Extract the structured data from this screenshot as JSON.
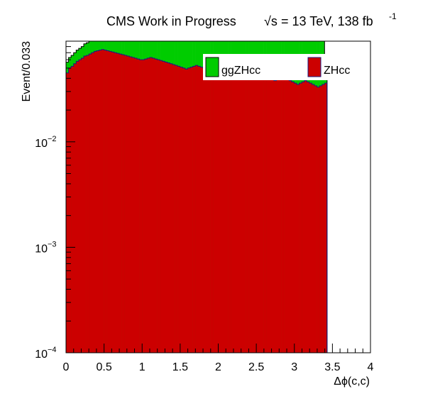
{
  "chart_data": {
    "type": "bar",
    "stacked": true,
    "title_main": "CMS Work in Progress",
    "title_energy": "= 13 TeV, 138 fb",
    "title_sqrt": "√s",
    "title_exp": "-1",
    "xlabel": "Δϕ(c,c)",
    "ylabel": "Event/0.033",
    "xlim": [
      0,
      4
    ],
    "ylim": [
      0.0001,
      0.09
    ],
    "yscale": "log",
    "bin_width": 0.0333,
    "x_ticks": [
      "0",
      "0.5",
      "1",
      "1.5",
      "2",
      "2.5",
      "3",
      "3.5",
      "4"
    ],
    "x_tick_values": [
      0,
      0.5,
      1,
      1.5,
      2,
      2.5,
      3,
      3.5,
      4
    ],
    "y_ticks": [
      {
        "value": 0.01,
        "base": "10",
        "exp": "−2"
      },
      {
        "value": 0.001,
        "base": "10",
        "exp": "−3"
      },
      {
        "value": 0.0001,
        "base": "10",
        "exp": "−4"
      }
    ],
    "legend": [
      {
        "name": "ggZHcc",
        "color": "#00cc00"
      },
      {
        "name": "ZHcc",
        "color": "#cc0000"
      }
    ],
    "legend_position": "top-right",
    "series": [
      {
        "name": "ZHcc",
        "color": "#cc0000",
        "values": [
          0.045,
          0.05,
          0.052,
          0.055,
          0.058,
          0.06,
          0.062,
          0.065,
          0.066,
          0.068,
          0.07,
          0.072,
          0.073,
          0.074,
          0.075,
          0.074,
          0.073,
          0.072,
          0.071,
          0.07,
          0.069,
          0.068,
          0.067,
          0.066,
          0.065,
          0.064,
          0.063,
          0.062,
          0.061,
          0.06,
          0.06,
          0.061,
          0.062,
          0.063,
          0.062,
          0.061,
          0.06,
          0.059,
          0.058,
          0.057,
          0.056,
          0.055,
          0.054,
          0.053,
          0.052,
          0.051,
          0.05,
          0.049,
          0.05,
          0.051,
          0.052,
          0.053,
          0.052,
          0.051,
          0.05,
          0.049,
          0.048,
          0.047,
          0.046,
          0.045,
          0.044,
          0.043,
          0.042,
          0.043,
          0.044,
          0.045,
          0.046,
          0.045,
          0.044,
          0.043,
          0.042,
          0.041,
          0.04,
          0.041,
          0.042,
          0.043,
          0.044,
          0.043,
          0.042,
          0.041,
          0.04,
          0.039,
          0.038,
          0.039,
          0.04,
          0.041,
          0.04,
          0.039,
          0.038,
          0.037,
          0.036,
          0.035,
          0.036,
          0.037,
          0.038,
          0.037,
          0.036,
          0.035,
          0.034,
          0.033,
          0.034,
          0.035,
          0.036
        ]
      },
      {
        "name": "ggZHcc",
        "color": "#00cc00",
        "values": [
          0.012,
          0.013,
          0.014,
          0.015,
          0.016,
          0.017,
          0.018,
          0.02,
          0.021,
          0.022,
          0.023,
          0.024,
          0.025,
          0.026,
          0.027,
          0.027,
          0.028,
          0.028,
          0.029,
          0.03,
          0.031,
          0.031,
          0.032,
          0.033,
          0.033,
          0.034,
          0.035,
          0.036,
          0.036,
          0.037,
          0.038,
          0.038,
          0.039,
          0.04,
          0.041,
          0.041,
          0.042,
          0.043,
          0.043,
          0.044,
          0.045,
          0.046,
          0.047,
          0.047,
          0.048,
          0.049,
          0.05,
          0.05,
          0.051,
          0.052,
          0.052,
          0.053,
          0.054,
          0.055,
          0.055,
          0.056,
          0.057,
          0.058,
          0.058,
          0.059,
          0.06,
          0.061,
          0.062,
          0.062,
          0.063,
          0.064,
          0.064,
          0.065,
          0.066,
          0.067,
          0.068,
          0.068,
          0.069,
          0.07,
          0.071,
          0.072,
          0.072,
          0.073,
          0.074,
          0.075,
          0.075,
          0.076,
          0.077,
          0.078,
          0.079,
          0.079,
          0.08,
          0.081,
          0.082,
          0.083,
          0.084,
          0.085,
          0.086,
          0.087,
          0.088,
          0.089,
          0.09,
          0.091,
          0.092,
          0.093,
          0.094,
          0.095,
          0.028
        ]
      }
    ]
  }
}
